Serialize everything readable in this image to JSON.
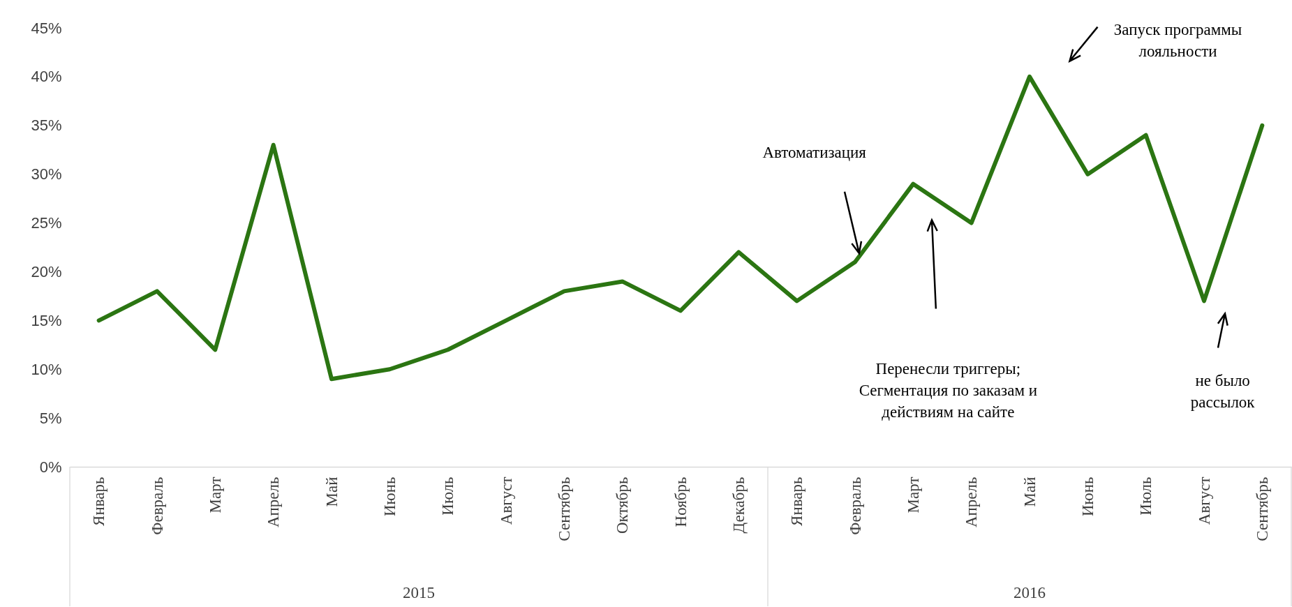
{
  "chart_data": {
    "type": "line",
    "categories": [
      "Январь",
      "Февраль",
      "Март",
      "Апрель",
      "Май",
      "Июнь",
      "Июль",
      "Август",
      "Сентябрь",
      "Октябрь",
      "Ноябрь",
      "Декабрь",
      "Январь",
      "Февраль",
      "Март",
      "Апрель",
      "Май",
      "Июнь",
      "Июль",
      "Август",
      "Сентябрь"
    ],
    "series": [
      {
        "color": "#2b7512",
        "values": [
          15,
          18,
          12,
          33,
          9,
          10,
          12,
          15,
          18,
          19,
          16,
          22,
          17,
          21,
          29,
          25,
          40,
          30,
          34,
          17,
          35
        ]
      }
    ],
    "ylim": [
      0,
      45
    ],
    "yticks": [
      {
        "value": 0,
        "label": "0%"
      },
      {
        "value": 5,
        "label": "5%"
      },
      {
        "value": 10,
        "label": "10%"
      },
      {
        "value": 15,
        "label": "15%"
      },
      {
        "value": 20,
        "label": "20%"
      },
      {
        "value": 25,
        "label": "25%"
      },
      {
        "value": 30,
        "label": "30%"
      },
      {
        "value": 35,
        "label": "35%"
      },
      {
        "value": 40,
        "label": "40%"
      },
      {
        "value": 45,
        "label": "45%"
      }
    ],
    "grid": false,
    "marker": "none",
    "line_style": "solid",
    "annotations": [
      "Автоматизация",
      "Перенесли триггеры;\nСегментация по заказам и\nдействиям на сайте",
      "Запуск программы\nлояльности",
      "не было\nрассылок",
      "2015",
      "2016"
    ]
  }
}
